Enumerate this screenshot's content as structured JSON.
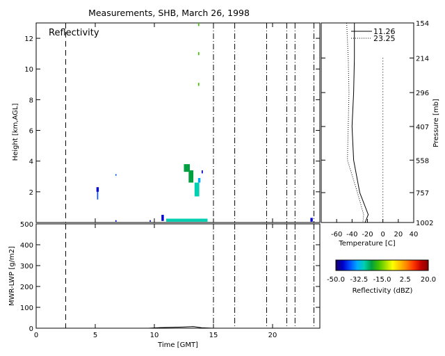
{
  "chart_data": [
    {
      "id": "reflectivity",
      "type": "heatmap",
      "title": "Measurements, SHB, March 26, 1998",
      "panel_label": "Reflectivity",
      "xlabel": "",
      "ylabel": "Height [km,AGL]",
      "xlim": [
        0,
        24
      ],
      "ylim": [
        0,
        13
      ],
      "xticks": [
        0,
        5,
        10,
        15,
        20
      ],
      "yticks": [
        2,
        4,
        6,
        8,
        10,
        12
      ],
      "long_dash_lines_x": [
        2.5
      ],
      "dash_dot_lines_x": [
        15.0,
        16.8,
        19.5,
        21.2,
        21.9,
        23.5
      ],
      "echoes": [
        {
          "x0": 5.1,
          "x1": 5.3,
          "y0": 2.0,
          "y1": 2.3,
          "dbz": -45
        },
        {
          "x0": 5.15,
          "x1": 5.25,
          "y0": 1.5,
          "y1": 2.0,
          "dbz": -40
        },
        {
          "x0": 6.7,
          "x1": 6.8,
          "y0": 3.05,
          "y1": 3.15,
          "dbz": -40
        },
        {
          "x0": 12.5,
          "x1": 13.0,
          "y0": 3.3,
          "y1": 3.8,
          "dbz": -25
        },
        {
          "x0": 12.9,
          "x1": 13.3,
          "y0": 2.6,
          "y1": 3.4,
          "dbz": -25
        },
        {
          "x0": 13.4,
          "x1": 13.8,
          "y0": 1.7,
          "y1": 2.6,
          "dbz": -28
        },
        {
          "x0": 13.7,
          "x1": 13.9,
          "y0": 2.6,
          "y1": 2.9,
          "dbz": -35
        },
        {
          "x0": 14.0,
          "x1": 14.1,
          "y0": 3.2,
          "y1": 3.4,
          "dbz": -45
        },
        {
          "x0": 13.7,
          "x1": 13.8,
          "y0": 8.9,
          "y1": 9.1,
          "dbz": -20
        },
        {
          "x0": 13.7,
          "x1": 13.8,
          "y0": 12.8,
          "y1": 13.0,
          "dbz": -20
        },
        {
          "x0": 13.7,
          "x1": 13.8,
          "y0": 10.9,
          "y1": 11.1,
          "dbz": -20
        },
        {
          "x0": 11.0,
          "x1": 14.5,
          "y0": 0.05,
          "y1": 0.25,
          "dbz": -30
        },
        {
          "x0": 10.6,
          "x1": 10.8,
          "y0": 0.1,
          "y1": 0.5,
          "dbz": -45
        },
        {
          "x0": 9.6,
          "x1": 9.7,
          "y0": 0.05,
          "y1": 0.15,
          "dbz": -45
        },
        {
          "x0": 6.7,
          "x1": 6.8,
          "y0": 0.05,
          "y1": 0.15,
          "dbz": -45
        },
        {
          "x0": 23.2,
          "x1": 23.4,
          "y0": 0.05,
          "y1": 0.3,
          "dbz": -45
        }
      ]
    },
    {
      "id": "profile",
      "type": "line",
      "xlabel": "Temperature [C]",
      "ylabel": "Pressure [mb]",
      "xlim": [
        -80,
        40
      ],
      "xticks": [
        -60,
        -40,
        -20,
        0,
        20,
        40
      ],
      "yticks": [
        154,
        214,
        296,
        407,
        558,
        757,
        1002
      ],
      "series": [
        {
          "name": "11.26",
          "style": "solid",
          "points": [
            [
              -37,
              154
            ],
            [
              -37,
              214
            ],
            [
              -38,
              296
            ],
            [
              -40,
              407
            ],
            [
              -38,
              558
            ],
            [
              -30,
              757
            ],
            [
              -19,
              930
            ],
            [
              -23,
              1002
            ]
          ]
        },
        {
          "name": "23.25",
          "style": "dotted",
          "points": [
            [
              -47,
              154
            ],
            [
              -45,
              214
            ],
            [
              -44,
              296
            ],
            [
              -45,
              407
            ],
            [
              -46,
              558
            ],
            [
              -33,
              757
            ],
            [
              -25,
              930
            ],
            [
              -26,
              1002
            ]
          ]
        }
      ],
      "reference_line_x": 0
    },
    {
      "id": "lwp",
      "type": "line",
      "xlabel": "Time [GMT]",
      "ylabel": "MWR-LWP [g/m2]",
      "xlim": [
        0,
        24
      ],
      "ylim": [
        0,
        500
      ],
      "xticks": [
        0,
        5,
        10,
        15,
        20
      ],
      "yticks": [
        0,
        100,
        200,
        300,
        400,
        500
      ],
      "long_dash_lines_x": [
        2.5
      ],
      "dash_dot_lines_x": [
        15.0,
        16.8,
        19.5,
        21.2,
        21.9,
        23.5
      ],
      "points": [
        [
          0.0,
          0
        ],
        [
          9.5,
          0
        ],
        [
          10.5,
          3
        ],
        [
          11.5,
          4
        ],
        [
          12.5,
          6
        ],
        [
          13.3,
          8
        ],
        [
          14.0,
          2
        ],
        [
          15.0,
          0
        ],
        [
          24.0,
          0
        ]
      ]
    }
  ],
  "colorbar": {
    "label": "Reflectivity (dBZ)",
    "min": -50,
    "max": 20,
    "ticks": [
      -50.0,
      -32.5,
      -15.0,
      2.5,
      20.0
    ],
    "tick_labels": [
      "-50.0",
      "-32.5",
      "-15.0",
      "2.5",
      "20.0"
    ],
    "stops": [
      "#1a0066",
      "#0000cc",
      "#0050ff",
      "#00aaff",
      "#00d0b0",
      "#00a040",
      "#40c000",
      "#a0e000",
      "#ffff00",
      "#ffc000",
      "#ff8000",
      "#ff3000",
      "#c00000",
      "#800000"
    ]
  }
}
